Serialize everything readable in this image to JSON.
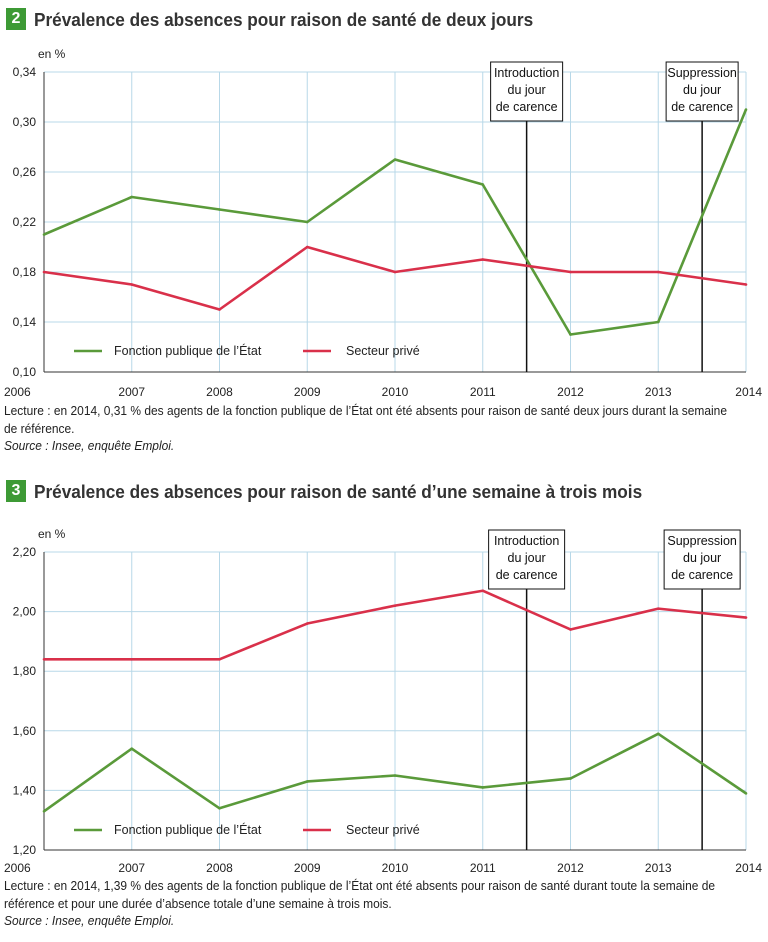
{
  "chart_data": [
    {
      "type": "line",
      "badge": "2",
      "title": "Prévalence des absences pour raison de santé de deux jours",
      "unit_label": "en %",
      "x": [
        2006,
        2007,
        2008,
        2009,
        2010,
        2011,
        2012,
        2013,
        2014
      ],
      "x_tick_labels": [
        "2006",
        "2007",
        "2008",
        "2009",
        "2010",
        "2011",
        "2012",
        "2013",
        "2014"
      ],
      "ylim": [
        0.1,
        0.34
      ],
      "y_ticks": [
        0.1,
        0.14,
        0.18,
        0.22,
        0.26,
        0.3,
        0.34
      ],
      "y_tick_labels": [
        "0,10",
        "0,14",
        "0,18",
        "0,22",
        "0,26",
        "0,30",
        "0,34"
      ],
      "grid": true,
      "series": [
        {
          "name": "Fonction publique de l’État",
          "color": "#5a9a3a",
          "values": [
            0.21,
            0.24,
            0.23,
            0.22,
            0.27,
            0.25,
            0.13,
            0.14,
            0.31
          ]
        },
        {
          "name": "Secteur privé",
          "color": "#d9304a",
          "values": [
            0.18,
            0.17,
            0.15,
            0.2,
            0.18,
            0.19,
            0.18,
            0.18,
            0.17
          ]
        }
      ],
      "annotations": [
        {
          "x": 2011.5,
          "lines": [
            "Introduction",
            "du jour",
            "de carence"
          ]
        },
        {
          "x": 2013.5,
          "lines": [
            "Suppression",
            "du jour",
            "de carence"
          ]
        }
      ],
      "legend_position": "bottom-left",
      "reading_note": "Lecture : en 2014, 0,31 % des agents de la fonction publique de l’État ont été absents pour raison de santé deux jours durant la semaine de référence.",
      "source": "Source : Insee, enquête Emploi."
    },
    {
      "type": "line",
      "badge": "3",
      "title": "Prévalence des absences pour raison de santé d’une semaine à trois mois",
      "unit_label": "en %",
      "x": [
        2006,
        2007,
        2008,
        2009,
        2010,
        2011,
        2012,
        2013,
        2014
      ],
      "x_tick_labels": [
        "2006",
        "2007",
        "2008",
        "2009",
        "2010",
        "2011",
        "2012",
        "2013",
        "2014"
      ],
      "ylim": [
        1.2,
        2.2
      ],
      "y_ticks": [
        1.2,
        1.4,
        1.6,
        1.8,
        2.0,
        2.2
      ],
      "y_tick_labels": [
        "1,20",
        "1,40",
        "1,60",
        "1,80",
        "2,00",
        "2,20"
      ],
      "grid": true,
      "series": [
        {
          "name": "Fonction publique de l’État",
          "color": "#5a9a3a",
          "values": [
            1.33,
            1.54,
            1.34,
            1.43,
            1.45,
            1.41,
            1.44,
            1.59,
            1.39
          ]
        },
        {
          "name": "Secteur privé",
          "color": "#d9304a",
          "values": [
            1.84,
            1.84,
            1.84,
            1.96,
            2.02,
            2.07,
            1.94,
            2.01,
            1.98
          ]
        }
      ],
      "annotations": [
        {
          "x": 2011.5,
          "lines": [
            "Introduction",
            "du jour",
            "de carence"
          ]
        },
        {
          "x": 2013.5,
          "lines": [
            "Suppression",
            "du jour",
            "de carence"
          ]
        }
      ],
      "legend_position": "bottom-left",
      "reading_note": "Lecture : en 2014, 1,39 % des agents de la fonction publique de l’État ont été absents pour raison de santé durant toute la semaine de référence et pour une durée d’absence totale d’une semaine à trois mois.",
      "source": "Source : Insee, enquête Emploi."
    }
  ]
}
